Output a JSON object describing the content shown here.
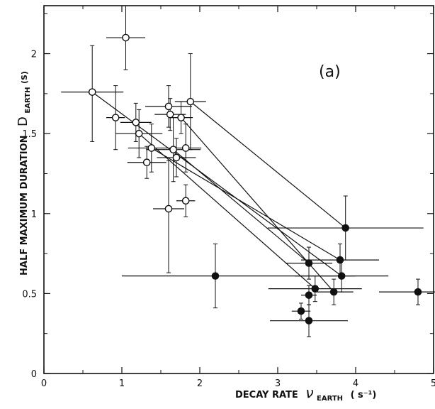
{
  "chart_data": {
    "type": "scatter",
    "panel_label": "(a)",
    "xlabel": "DECAY RATE ν EARTH (s⁻¹)",
    "xlabel_main": "DECAY RATE",
    "xlabel_symbol": "ν",
    "xlabel_sub": "EARTH",
    "xlabel_unit": "( s⁻¹)",
    "ylabel": "HALF MAXIMUM DURATION D EARTH (S)",
    "ylabel_main": "HALF MAXIMUM DURATION",
    "ylabel_symbol": "D",
    "ylabel_sub": "EARTH",
    "ylabel_unit": "(S)",
    "xlim": [
      0,
      5
    ],
    "ylim": [
      0,
      2.3
    ],
    "xticks": [
      0,
      1,
      2,
      3,
      4,
      5
    ],
    "xtick_labels": [
      "0",
      "1",
      "2",
      "3",
      "4",
      "5"
    ],
    "yticks": [
      0,
      0.5,
      1,
      1.5,
      2
    ],
    "ytick_labels": [
      "0",
      "0.5",
      "1",
      "1.5",
      "2"
    ],
    "grid": false,
    "series": [
      {
        "marker": "open-circle",
        "points": [
          {
            "x": 0.62,
            "y": 1.76,
            "xerr": [
              0.4,
              0.4
            ],
            "yerr": [
              0.31,
              0.29
            ]
          },
          {
            "x": 1.05,
            "y": 2.1,
            "xerr": [
              0.25,
              0.25
            ],
            "yerr": [
              0.2,
              0.2
            ]
          },
          {
            "x": 0.92,
            "y": 1.6,
            "xerr": [
              0.12,
              0.12
            ],
            "yerr": [
              0.2,
              0.2
            ]
          },
          {
            "x": 1.18,
            "y": 1.57,
            "xerr": [
              0.2,
              0.2
            ],
            "yerr": [
              0.12,
              0.12
            ]
          },
          {
            "x": 1.22,
            "y": 1.5,
            "xerr": [
              0.3,
              0.3
            ],
            "yerr": [
              0.15,
              0.15
            ]
          },
          {
            "x": 1.38,
            "y": 1.41,
            "xerr": [
              0.3,
              0.3
            ],
            "yerr": [
              0.15,
              0.15
            ]
          },
          {
            "x": 1.32,
            "y": 1.32,
            "xerr": [
              0.25,
              0.25
            ],
            "yerr": [
              0.1,
              0.1
            ]
          },
          {
            "x": 1.6,
            "y": 1.67,
            "xerr": [
              0.3,
              0.3
            ],
            "yerr": [
              0.13,
              0.13
            ]
          },
          {
            "x": 1.62,
            "y": 1.62,
            "xerr": [
              0.2,
              0.2
            ],
            "yerr": [
              0.1,
              0.1
            ]
          },
          {
            "x": 1.76,
            "y": 1.6,
            "xerr": [
              0.15,
              0.15
            ],
            "yerr": [
              0.1,
              0.1
            ]
          },
          {
            "x": 1.66,
            "y": 1.4,
            "xerr": [
              0.35,
              0.35
            ],
            "yerr": [
              0.2,
              0.2
            ]
          },
          {
            "x": 1.7,
            "y": 1.35,
            "xerr": [
              0.25,
              0.25
            ],
            "yerr": [
              0.12,
              0.12
            ]
          },
          {
            "x": 1.82,
            "y": 1.41,
            "xerr": [
              0.2,
              0.2
            ],
            "yerr": [
              0.15,
              0.15
            ]
          },
          {
            "x": 1.88,
            "y": 1.7,
            "xerr": [
              0.2,
              0.2
            ],
            "yerr": [
              0.3,
              0.3
            ]
          },
          {
            "x": 1.6,
            "y": 1.03,
            "xerr": [
              0.2,
              0.2
            ],
            "yerr": [
              0.4,
              0.3
            ]
          },
          {
            "x": 1.82,
            "y": 1.08,
            "xerr": [
              0.12,
              0.12
            ],
            "yerr": [
              0.1,
              0.1
            ]
          }
        ]
      },
      {
        "marker": "filled-circle",
        "points": [
          {
            "x": 2.2,
            "y": 0.61,
            "xerr": [
              1.2,
              1.8
            ],
            "yerr": [
              0.2,
              0.2
            ]
          },
          {
            "x": 3.87,
            "y": 0.91,
            "xerr": [
              1.0,
              1.0
            ],
            "yerr": [
              0.2,
              0.2
            ]
          },
          {
            "x": 3.4,
            "y": 0.69,
            "xerr": [
              0.3,
              0.3
            ],
            "yerr": [
              0.1,
              0.1
            ]
          },
          {
            "x": 3.8,
            "y": 0.71,
            "xerr": [
              0.5,
              0.5
            ],
            "yerr": [
              0.1,
              0.1
            ]
          },
          {
            "x": 3.82,
            "y": 0.61,
            "xerr": [
              0.6,
              0.6
            ],
            "yerr": [
              0.1,
              0.1
            ]
          },
          {
            "x": 3.48,
            "y": 0.53,
            "xerr": [
              0.6,
              0.6
            ],
            "yerr": [
              0.08,
              0.08
            ]
          },
          {
            "x": 3.4,
            "y": 0.49,
            "xerr": [
              0.1,
              0.1
            ],
            "yerr": [
              0.06,
              0.06
            ]
          },
          {
            "x": 3.72,
            "y": 0.51,
            "xerr": [
              0.25,
              0.25
            ],
            "yerr": [
              0.08,
              0.08
            ]
          },
          {
            "x": 4.8,
            "y": 0.51,
            "xerr": [
              0.5,
              0.5
            ],
            "yerr": [
              0.08,
              0.08
            ]
          },
          {
            "x": 3.3,
            "y": 0.39,
            "xerr": [
              0.12,
              0.12
            ],
            "yerr": [
              0.05,
              0.05
            ]
          },
          {
            "x": 3.4,
            "y": 0.33,
            "xerr": [
              0.5,
              0.5
            ],
            "yerr": [
              0.1,
              0.1
            ]
          }
        ]
      }
    ],
    "connections": [
      {
        "from": [
          0.62,
          1.76
        ],
        "to": [
          3.82,
          0.61
        ]
      },
      {
        "from": [
          1.22,
          1.5
        ],
        "to": [
          3.48,
          0.53
        ]
      },
      {
        "from": [
          1.38,
          1.41
        ],
        "to": [
          3.8,
          0.71
        ]
      },
      {
        "from": [
          1.76,
          1.6
        ],
        "to": [
          3.72,
          0.51
        ]
      },
      {
        "from": [
          1.88,
          1.7
        ],
        "to": [
          3.87,
          0.91
        ]
      },
      {
        "from": [
          1.66,
          1.4
        ],
        "to": [
          3.4,
          0.69
        ]
      }
    ]
  }
}
